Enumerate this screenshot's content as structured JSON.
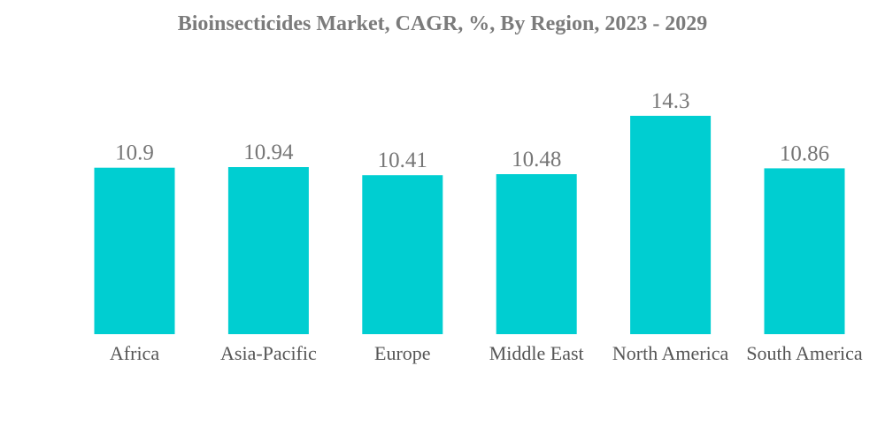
{
  "chart_data": {
    "type": "bar",
    "title": "Bioinsecticides Market, CAGR, %, By Region, 2023 - 2029",
    "categories": [
      "Africa",
      "Asia-Pacific",
      "Europe",
      "Middle East",
      "North America",
      "South America"
    ],
    "values": [
      10.9,
      10.94,
      10.41,
      10.48,
      14.3,
      10.86
    ],
    "value_labels": [
      "10.9",
      "10.94",
      "10.41",
      "10.48",
      "14.3",
      "10.86"
    ],
    "xlabel": "",
    "ylabel": "",
    "ylim": [
      0,
      14.3
    ],
    "grid": false,
    "legend": "none",
    "bar_color": "#00CED1"
  }
}
